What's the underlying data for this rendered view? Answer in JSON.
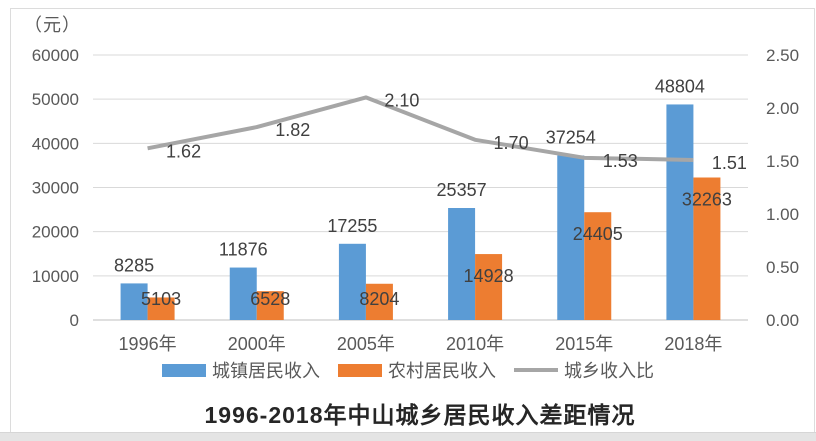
{
  "chart_data": {
    "type": "bar",
    "title": "1996-2018年中山城乡居民收入差距情况",
    "unit_label": "（元）",
    "categories": [
      "1996年",
      "2000年",
      "2005年",
      "2010年",
      "2015年",
      "2018年"
    ],
    "series": [
      {
        "name": "城镇居民收入",
        "type": "bar",
        "axis": "left",
        "color": "#5B9BD5",
        "values": [
          8285,
          11876,
          17255,
          25357,
          37254,
          48804
        ],
        "labels": [
          "8285",
          "11876",
          "17255",
          "25357",
          "37254",
          "48804"
        ]
      },
      {
        "name": "农村居民收入",
        "type": "bar",
        "axis": "left",
        "color": "#ED7D31",
        "values": [
          5103,
          6528,
          8204,
          14928,
          24405,
          32263
        ],
        "labels": [
          "5103",
          "6528",
          "8204",
          "14928",
          "24405",
          "32263"
        ]
      },
      {
        "name": "城乡收入比",
        "type": "line",
        "axis": "right",
        "color": "#A6A6A6",
        "values": [
          1.62,
          1.82,
          2.1,
          1.7,
          1.53,
          1.51
        ],
        "labels": [
          "1.62",
          "1.82",
          "2.10",
          "1.70",
          "1.53",
          "1.51"
        ]
      }
    ],
    "left_axis": {
      "min": 0,
      "max": 60000,
      "ticks": [
        "60000",
        "50000",
        "40000",
        "30000",
        "20000",
        "10000",
        "0"
      ]
    },
    "right_axis": {
      "min": 0,
      "max": 2.5,
      "ticks": [
        "2.50",
        "2.00",
        "1.50",
        "1.00",
        "0.50",
        "0.00"
      ]
    },
    "grid": true,
    "legend_position": "bottom"
  }
}
